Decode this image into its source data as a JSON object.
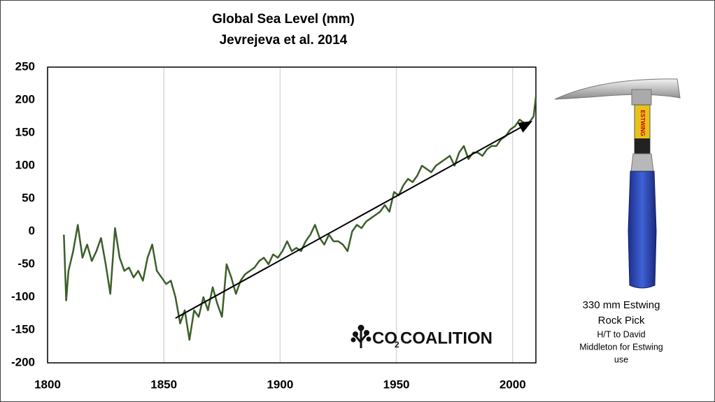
{
  "chart_data": {
    "type": "line",
    "title": "Global Sea Level (mm)",
    "subtitle": "Jevrejeva et al. 2014",
    "xlim": [
      1800,
      2010
    ],
    "xticks": [
      1800,
      1850,
      1900,
      1950,
      2000
    ],
    "ylim": [
      -200,
      250
    ],
    "yticks": [
      -200,
      -150,
      -100,
      -50,
      0,
      50,
      100,
      150,
      200,
      250
    ],
    "grid": true,
    "series": [
      {
        "name": "Global sea level",
        "color": "#3d5e2a",
        "x": [
          1807,
          1808,
          1809,
          1811,
          1813,
          1815,
          1817,
          1819,
          1821,
          1823,
          1825,
          1827,
          1829,
          1831,
          1833,
          1835,
          1837,
          1839,
          1841,
          1843,
          1845,
          1847,
          1849,
          1851,
          1853,
          1855,
          1857,
          1859,
          1861,
          1863,
          1865,
          1867,
          1869,
          1871,
          1873,
          1875,
          1877,
          1879,
          1881,
          1883,
          1885,
          1887,
          1889,
          1891,
          1893,
          1895,
          1897,
          1899,
          1901,
          1903,
          1905,
          1907,
          1909,
          1911,
          1913,
          1915,
          1917,
          1919,
          1921,
          1923,
          1925,
          1927,
          1929,
          1931,
          1933,
          1935,
          1937,
          1939,
          1941,
          1943,
          1945,
          1947,
          1949,
          1951,
          1953,
          1955,
          1957,
          1959,
          1961,
          1963,
          1965,
          1967,
          1969,
          1971,
          1973,
          1975,
          1977,
          1979,
          1981,
          1983,
          1985,
          1987,
          1989,
          1991,
          1993,
          1995,
          1997,
          1999,
          2001,
          2003,
          2005,
          2007,
          2009,
          2010
        ],
        "values": [
          -5,
          -105,
          -60,
          -30,
          10,
          -40,
          -20,
          -45,
          -30,
          -10,
          -50,
          -95,
          5,
          -40,
          -60,
          -55,
          -70,
          -60,
          -75,
          -40,
          -20,
          -60,
          -70,
          -80,
          -75,
          -100,
          -140,
          -120,
          -165,
          -120,
          -130,
          -100,
          -120,
          -85,
          -110,
          -130,
          -50,
          -70,
          -95,
          -75,
          -65,
          -60,
          -55,
          -45,
          -40,
          -50,
          -35,
          -40,
          -30,
          -15,
          -30,
          -25,
          -30,
          -15,
          -5,
          10,
          -10,
          -20,
          -5,
          -15,
          -15,
          -20,
          -30,
          0,
          10,
          5,
          15,
          20,
          25,
          30,
          40,
          30,
          60,
          55,
          70,
          80,
          75,
          85,
          100,
          95,
          90,
          100,
          105,
          110,
          115,
          100,
          120,
          130,
          110,
          120,
          120,
          115,
          125,
          130,
          130,
          140,
          145,
          155,
          160,
          170,
          165,
          165,
          175,
          205
        ]
      }
    ],
    "trend_line": {
      "x": [
        1855,
        2008
      ],
      "values": [
        -132,
        167
      ],
      "color": "#000000"
    },
    "logo": {
      "prefix": "CO",
      "subscript": "2",
      "suffix": "COALITION"
    },
    "hammer_label": "ESTWING",
    "caption": {
      "lines": [
        "330 mm Estwing",
        "Rock Pick"
      ],
      "credit": [
        "H/T to David",
        "Middleton for Estwing",
        "use"
      ]
    }
  }
}
